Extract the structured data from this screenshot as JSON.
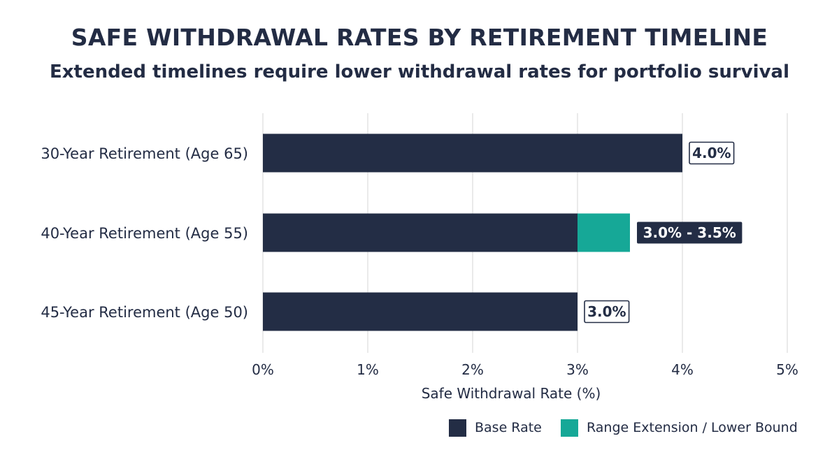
{
  "chart_data": {
    "type": "bar",
    "orientation": "horizontal",
    "stacked": true,
    "title": "SAFE WITHDRAWAL RATES BY RETIREMENT TIMELINE",
    "subtitle": "Extended timelines require lower withdrawal rates for portfolio survival",
    "xlabel": "Safe Withdrawal Rate (%)",
    "ylabel": "",
    "xlim": [
      0,
      5
    ],
    "xticks": [
      0,
      1,
      2,
      3,
      4,
      5
    ],
    "xtick_labels": [
      "0%",
      "1%",
      "2%",
      "3%",
      "4%",
      "5%"
    ],
    "grid": "vertical",
    "legend_position": "bottom-right",
    "categories": [
      "30-Year Retirement (Age 65)",
      "40-Year Retirement (Age 55)",
      "45-Year Retirement (Age 50)"
    ],
    "series": [
      {
        "name": "Base Rate",
        "color": "#232d45",
        "values": [
          4.0,
          3.0,
          3.0
        ]
      },
      {
        "name": "Range Extension / Lower Bound",
        "color": "#16a897",
        "values": [
          0,
          0.5,
          0
        ]
      }
    ],
    "data_labels": [
      "4.0%",
      "3.0% - 3.5%",
      "3.0%"
    ],
    "data_label_styles": [
      "outlined",
      "filled",
      "outlined"
    ]
  }
}
